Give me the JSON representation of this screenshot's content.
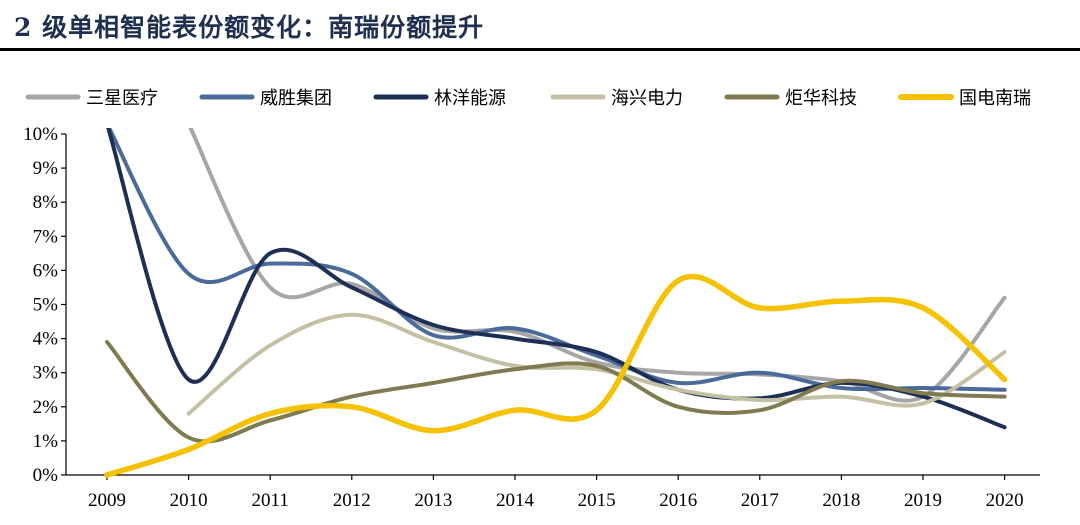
{
  "header": {
    "title": "2 级单相智能表份额变化：南瑞份额提升"
  },
  "chart_data": {
    "type": "line",
    "title": "2 级单相智能表份额变化：南瑞份额提升",
    "xlabel": "",
    "ylabel": "",
    "categories": [
      "2009",
      "2010",
      "2011",
      "2012",
      "2013",
      "2014",
      "2015",
      "2016",
      "2017",
      "2018",
      "2019",
      "2020"
    ],
    "ylim": [
      0,
      10
    ],
    "yticks": [
      "0%",
      "1%",
      "2%",
      "3%",
      "4%",
      "5%",
      "6%",
      "7%",
      "8%",
      "9%",
      "10%"
    ],
    "grid": false,
    "legend": "top",
    "series": [
      {
        "name": "三星医疗",
        "color": "#a6a6a6",
        "values": [
          null,
          10.3,
          5.5,
          5.6,
          4.3,
          4.2,
          3.3,
          3.0,
          2.95,
          2.75,
          2.3,
          5.2
        ]
      },
      {
        "name": "威胜集团",
        "color": "#4a6a9a",
        "values": [
          10.3,
          5.9,
          6.2,
          5.9,
          4.1,
          4.3,
          3.5,
          2.7,
          3.0,
          2.55,
          2.55,
          2.5
        ]
      },
      {
        "name": "林洋能源",
        "color": "#1d2f55",
        "values": [
          10.3,
          2.8,
          6.5,
          5.5,
          4.4,
          4.0,
          3.6,
          2.5,
          2.25,
          2.7,
          2.3,
          1.4
        ]
      },
      {
        "name": "海兴电力",
        "color": "#c4c0a4",
        "values": [
          null,
          1.8,
          3.8,
          4.7,
          3.9,
          3.2,
          3.1,
          2.5,
          2.2,
          2.3,
          2.1,
          3.6
        ]
      },
      {
        "name": "炬华科技",
        "color": "#7f7a4f",
        "values": [
          3.9,
          1.1,
          1.6,
          2.3,
          2.7,
          3.1,
          3.2,
          2.0,
          1.9,
          2.75,
          2.4,
          2.3
        ]
      },
      {
        "name": "国电南瑞",
        "color": "#f5c100",
        "values": [
          0.0,
          0.75,
          1.8,
          2.0,
          1.3,
          1.9,
          1.9,
          5.7,
          4.9,
          5.1,
          4.9,
          2.8
        ]
      }
    ]
  }
}
